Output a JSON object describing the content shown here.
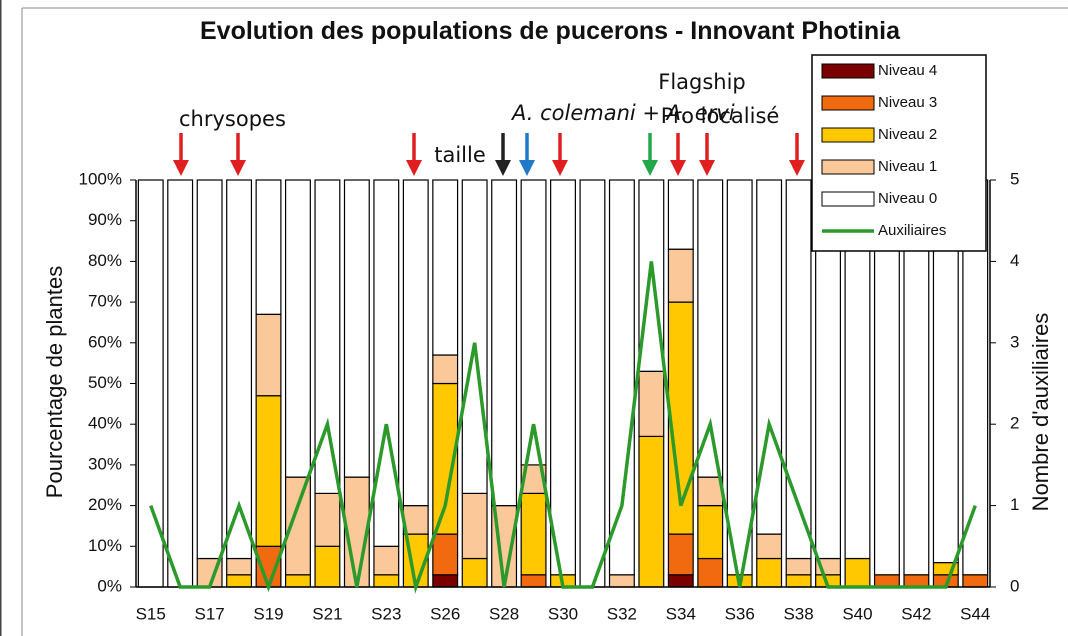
{
  "chart_data": {
    "type": "stacked_bar",
    "title": "Evolution des populations de pucerons - Innovant Photinia",
    "y_label": "Pourcentage de plantes",
    "y2_label": "Nombre d'auxiliaires",
    "categories": [
      "S15",
      null,
      "S17",
      null,
      "S19",
      null,
      "S21",
      null,
      "S23",
      null,
      "S26",
      null,
      "S28",
      null,
      "S30",
      null,
      "S32",
      null,
      "S34",
      null,
      "S36",
      null,
      "S38",
      null,
      "S40",
      null,
      "S42",
      null,
      "S44"
    ],
    "series": [
      {
        "name": "Niveau 4",
        "color": "#7a0000",
        "values": [
          0,
          0,
          0,
          0,
          0,
          0,
          0,
          0,
          0,
          0,
          3,
          0,
          0,
          0,
          0,
          0,
          0,
          0,
          3,
          0,
          0,
          0,
          0,
          0,
          0,
          0,
          0,
          0,
          0
        ]
      },
      {
        "name": "Niveau 3",
        "color": "#f26a10",
        "values": [
          0,
          0,
          0,
          0,
          10,
          0,
          0,
          0,
          0,
          0,
          10,
          0,
          0,
          3,
          0,
          0,
          0,
          0,
          10,
          7,
          0,
          0,
          0,
          0,
          0,
          3,
          3,
          3,
          3
        ]
      },
      {
        "name": "Niveau 2",
        "color": "#ffc800",
        "values": [
          0,
          0,
          0,
          3,
          37,
          3,
          10,
          0,
          3,
          13,
          37,
          7,
          0,
          20,
          3,
          0,
          0,
          37,
          57,
          13,
          3,
          7,
          3,
          3,
          7,
          0,
          0,
          3,
          0
        ]
      },
      {
        "name": "Niveau 1",
        "color": "#fbc89a",
        "values": [
          0,
          0,
          7,
          4,
          20,
          24,
          13,
          27,
          7,
          7,
          7,
          16,
          20,
          7,
          0,
          0,
          3,
          16,
          13,
          7,
          0,
          6,
          4,
          4,
          0,
          0,
          0,
          0,
          0
        ]
      },
      {
        "name": "Niveau 0",
        "color": "#ffffff",
        "values": [
          100,
          100,
          93,
          93,
          33,
          73,
          77,
          73,
          90,
          80,
          43,
          77,
          80,
          70,
          97,
          100,
          97,
          47,
          17,
          73,
          97,
          87,
          93,
          93,
          93,
          97,
          97,
          94,
          97
        ]
      },
      {
        "name": "Auxiliaires",
        "color": "#2b9a2b",
        "type": "line",
        "axis": "y2",
        "values": [
          1,
          0,
          0,
          1,
          0,
          1,
          2,
          0,
          2,
          0,
          1,
          3,
          0,
          2,
          0,
          0,
          1,
          4,
          1,
          2,
          0,
          2,
          1,
          0,
          0,
          0,
          0,
          0,
          1
        ]
      }
    ],
    "ylim": [
      0,
      100
    ],
    "yticks": [
      {
        "value": 0,
        "label": "0%"
      },
      {
        "value": 10,
        "label": "10%"
      },
      {
        "value": 20,
        "label": "20%"
      },
      {
        "value": 30,
        "label": "30%"
      },
      {
        "value": 40,
        "label": "40%"
      },
      {
        "value": 50,
        "label": "50%"
      },
      {
        "value": 60,
        "label": "60%"
      },
      {
        "value": 70,
        "label": "70%"
      },
      {
        "value": 80,
        "label": "80%"
      },
      {
        "value": 90,
        "label": "90%"
      },
      {
        "value": 100,
        "label": "100%"
      }
    ],
    "y2lim": [
      0,
      5
    ],
    "y2ticks": [
      0,
      1,
      2,
      3,
      4,
      5
    ],
    "legend": "top-right",
    "annotations": [
      {
        "text": "chrysopes",
        "color": "#e02020"
      },
      {
        "text": "taille",
        "color": "#222222"
      },
      {
        "text": "A. colemani + A. ervi",
        "color": "#1f78c8"
      },
      {
        "text": "Flagship",
        "color": "#22a84a"
      },
      {
        "text": "Pro localisé",
        "color": "#22a84a"
      }
    ]
  }
}
